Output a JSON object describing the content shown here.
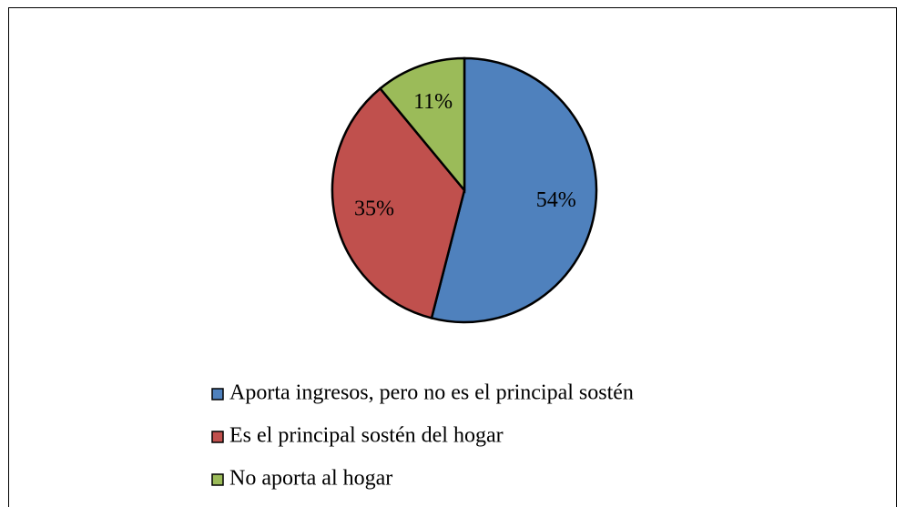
{
  "chart_data": {
    "type": "pie",
    "categories": [
      "Aporta ingresos, pero no es el principal sostén",
      "Es el principal sostén del hogar",
      "No aporta al hogar"
    ],
    "values": [
      54,
      35,
      11
    ],
    "value_labels": [
      "54%",
      "35%",
      "11%"
    ],
    "colors": [
      "#4f81bd",
      "#c0504d",
      "#9bbb59"
    ],
    "legend": "bottom"
  }
}
